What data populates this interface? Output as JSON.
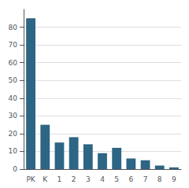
{
  "chart_data": {
    "type": "bar",
    "categories": [
      "PK",
      "K",
      "1",
      "2",
      "3",
      "4",
      "5",
      "6",
      "7",
      "8",
      "9"
    ],
    "values": [
      85,
      25,
      15,
      18,
      14,
      9,
      12,
      6,
      5,
      2,
      1
    ],
    "color": "#2d6584",
    "ylim": [
      0,
      90
    ],
    "yticks": [
      0,
      10,
      20,
      30,
      40,
      50,
      60,
      70,
      80
    ],
    "grid": true
  }
}
